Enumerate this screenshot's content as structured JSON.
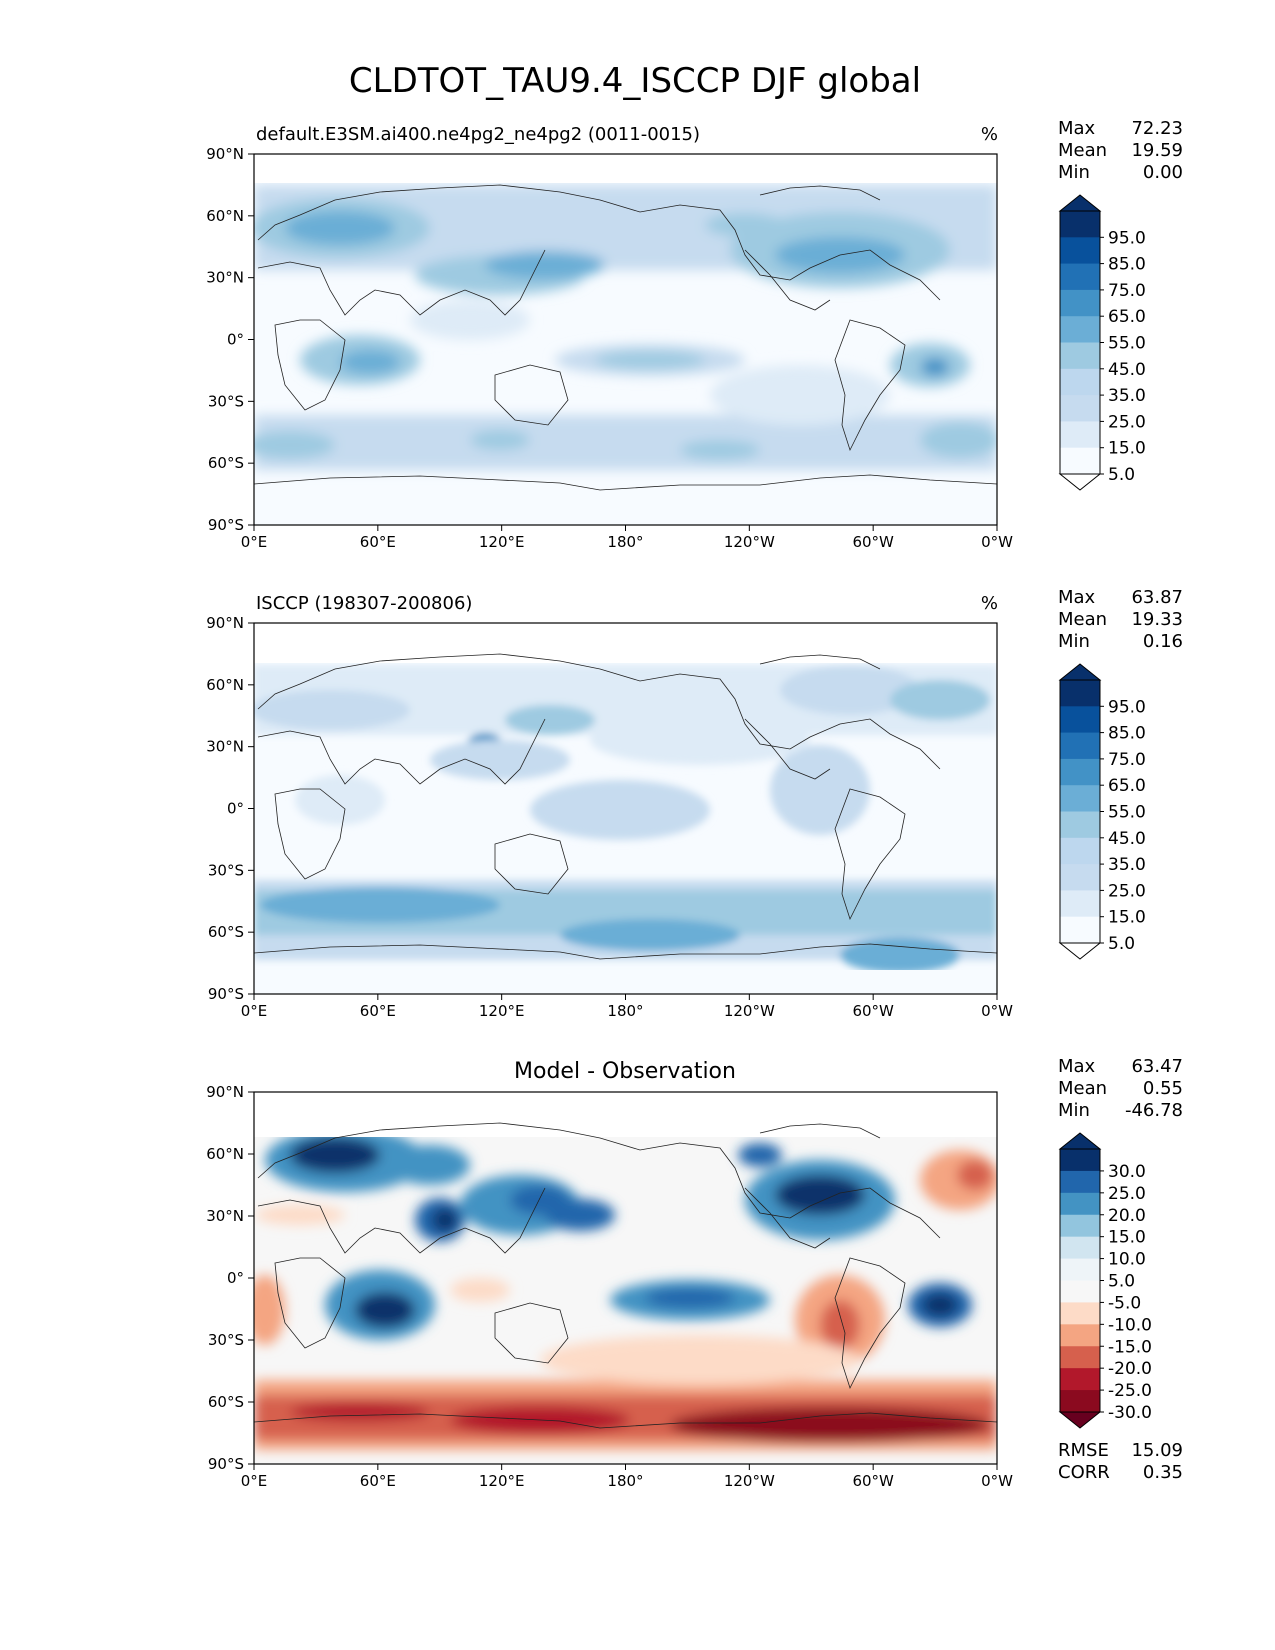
{
  "figure_title": "CLDTOT_TAU9.4_ISCCP DJF global",
  "lat_ticks": [
    "90°N",
    "60°N",
    "30°N",
    "0°",
    "30°S",
    "60°S",
    "90°S"
  ],
  "lon_ticks": [
    "0°E",
    "60°E",
    "120°E",
    "180°",
    "120°W",
    "60°W",
    "0°W"
  ],
  "panels": [
    {
      "id": "model",
      "title_left": "default.E3SM.ai400.ne4pg2_ne4pg2 (0011-0015)",
      "title_center": "",
      "units": "%",
      "stats": [
        {
          "label": "Max",
          "value": "72.23"
        },
        {
          "label": "Mean",
          "value": "19.59"
        },
        {
          "label": "Min",
          "value": "0.00"
        }
      ],
      "colorbar": {
        "labels": [
          "95.0",
          "85.0",
          "75.0",
          "65.0",
          "55.0",
          "45.0",
          "35.0",
          "25.0",
          "15.0",
          "5.0"
        ],
        "colors": [
          "#08306b",
          "#08519c",
          "#2171b5",
          "#4292c6",
          "#6baed6",
          "#9ecae1",
          "#bdd7ee",
          "#c6dbef",
          "#deebf7",
          "#f7fbff"
        ],
        "extend_top": "#08306b",
        "extend_bottom": "#ffffff"
      },
      "extra_stats": []
    },
    {
      "id": "obs",
      "title_left": "ISCCP (198307-200806)",
      "title_center": "",
      "units": "%",
      "stats": [
        {
          "label": "Max",
          "value": "63.87"
        },
        {
          "label": "Mean",
          "value": "19.33"
        },
        {
          "label": "Min",
          "value": "0.16"
        }
      ],
      "colorbar": {
        "labels": [
          "95.0",
          "85.0",
          "75.0",
          "65.0",
          "55.0",
          "45.0",
          "35.0",
          "25.0",
          "15.0",
          "5.0"
        ],
        "colors": [
          "#08306b",
          "#08519c",
          "#2171b5",
          "#4292c6",
          "#6baed6",
          "#9ecae1",
          "#bdd7ee",
          "#c6dbef",
          "#deebf7",
          "#f7fbff"
        ],
        "extend_top": "#08306b",
        "extend_bottom": "#ffffff"
      },
      "extra_stats": []
    },
    {
      "id": "diff",
      "title_left": "",
      "title_center": "Model - Observation",
      "units": "",
      "stats": [
        {
          "label": "Max",
          "value": "63.47"
        },
        {
          "label": "Mean",
          "value": "0.55"
        },
        {
          "label": "Min",
          "value": "-46.78"
        }
      ],
      "colorbar": {
        "labels": [
          "30.0",
          "25.0",
          "20.0",
          "15.0",
          "10.0",
          "5.0",
          "-5.0",
          "-10.0",
          "-15.0",
          "-20.0",
          "-25.0",
          "-30.0"
        ],
        "colors": [
          "#08306b",
          "#2166ac",
          "#4393c3",
          "#92c5de",
          "#d1e5f0",
          "#eef4f8",
          "#f7f7f7",
          "#fddbc7",
          "#f4a582",
          "#d6604d",
          "#b2182b",
          "#8b0a1f"
        ],
        "extend_top": "#08306b",
        "extend_bottom": "#67001f"
      },
      "extra_stats": [
        {
          "label": "RMSE",
          "value": "15.09"
        },
        {
          "label": "CORR",
          "value": "0.35"
        }
      ]
    }
  ]
}
